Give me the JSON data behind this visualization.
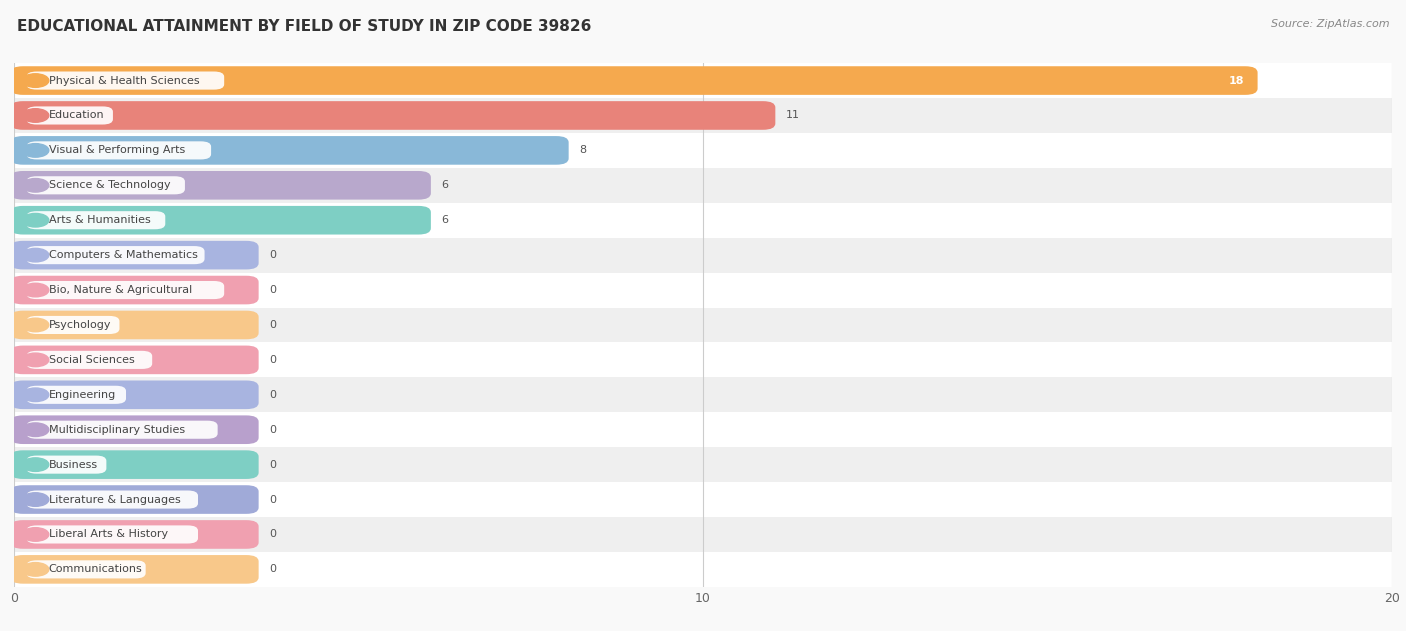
{
  "title": "EDUCATIONAL ATTAINMENT BY FIELD OF STUDY IN ZIP CODE 39826",
  "source": "Source: ZipAtlas.com",
  "categories": [
    "Physical & Health Sciences",
    "Education",
    "Visual & Performing Arts",
    "Science & Technology",
    "Arts & Humanities",
    "Computers & Mathematics",
    "Bio, Nature & Agricultural",
    "Psychology",
    "Social Sciences",
    "Engineering",
    "Multidisciplinary Studies",
    "Business",
    "Literature & Languages",
    "Liberal Arts & History",
    "Communications"
  ],
  "values": [
    18,
    11,
    8,
    6,
    6,
    0,
    0,
    0,
    0,
    0,
    0,
    0,
    0,
    0,
    0
  ],
  "bar_colors": [
    "#f5a94e",
    "#e8837a",
    "#89b8d8",
    "#b8a8cc",
    "#7ecfc4",
    "#a8b4e0",
    "#f0a0b0",
    "#f8c88a",
    "#f0a0b0",
    "#a8b4e0",
    "#b8a0cc",
    "#7ecfc4",
    "#a0aad8",
    "#f0a0b0",
    "#f8c88a"
  ],
  "xlim": [
    0,
    20
  ],
  "xticks": [
    0,
    10,
    20
  ],
  "background_color": "#f9f9f9",
  "row_bg_colors": [
    "#ffffff",
    "#efefef"
  ],
  "min_bar_width": 3.5,
  "title_fontsize": 11,
  "source_fontsize": 8,
  "label_fontsize": 8,
  "value_fontsize": 8,
  "tick_fontsize": 9
}
